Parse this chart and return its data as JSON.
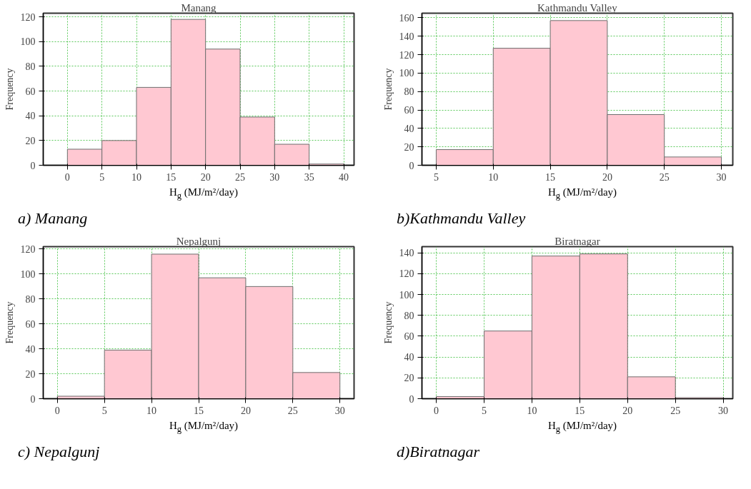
{
  "chart_data": [
    {
      "type": "histogram",
      "title": "Manang",
      "xlabel": "H$_{g}$ (MJ/m²/day)",
      "ylabel": "Frequency",
      "bins": [
        0,
        5,
        10,
        15,
        20,
        25,
        30,
        35,
        40
      ],
      "values": [
        13,
        20,
        63,
        118,
        94,
        39,
        17,
        1
      ],
      "color": "#ffc8d2",
      "xlim": [
        -3.5,
        41.5
      ],
      "ylim": [
        0,
        123
      ],
      "xticks": [
        0,
        5,
        10,
        15,
        20,
        25,
        30,
        35,
        40
      ],
      "yticks": [
        0,
        20,
        40,
        60,
        80,
        100,
        120
      ],
      "grid": true,
      "annotations": [
        "a) Manang"
      ]
    },
    {
      "type": "histogram",
      "title": "Kathmandu Valley",
      "xlabel": "H$_{g}$ (MJ/m²/day)",
      "ylabel": "Frequency",
      "bins": [
        5,
        10,
        15,
        20,
        25,
        30
      ],
      "values": [
        17,
        127,
        157,
        55,
        9
      ],
      "color": "#ffc8d2",
      "xlim": [
        3.75,
        31
      ],
      "ylim": [
        0,
        165
      ],
      "xticks": [
        5,
        10,
        15,
        20,
        25,
        30
      ],
      "yticks": [
        0,
        20,
        40,
        60,
        80,
        100,
        120,
        140,
        160
      ],
      "grid": true,
      "annotations": [
        "b)Kathmandu Valley"
      ]
    },
    {
      "type": "histogram",
      "title": "Nepalgunj",
      "xlabel": "H$_{g}$ (MJ/m²/day)",
      "ylabel": "Frequency",
      "bins": [
        0,
        5,
        10,
        15,
        20,
        25,
        30
      ],
      "values": [
        2,
        39,
        116,
        97,
        90,
        21
      ],
      "color": "#ffc8d2",
      "xlim": [
        -1.5,
        31.5
      ],
      "ylim": [
        0,
        122
      ],
      "xticks": [
        0,
        5,
        10,
        15,
        20,
        25,
        30
      ],
      "yticks": [
        0,
        20,
        40,
        60,
        80,
        100,
        120
      ],
      "grid": true,
      "annotations": [
        "c) Nepalgunj"
      ]
    },
    {
      "type": "histogram",
      "title": "Biratnagar",
      "xlabel": "H$_{g}$ (MJ/m²/day)",
      "ylabel": "Frequency",
      "bins": [
        0,
        5,
        10,
        15,
        20,
        25,
        30
      ],
      "values": [
        2,
        65,
        137,
        139,
        21,
        1
      ],
      "color": "#ffc8d2",
      "xlim": [
        -1.5,
        31
      ],
      "ylim": [
        0,
        146
      ],
      "xticks": [
        0,
        5,
        10,
        15,
        20,
        25,
        30
      ],
      "yticks": [
        0,
        20,
        40,
        60,
        80,
        100,
        120,
        140
      ],
      "grid": true,
      "annotations": [
        "d)Biratnagar"
      ]
    }
  ]
}
